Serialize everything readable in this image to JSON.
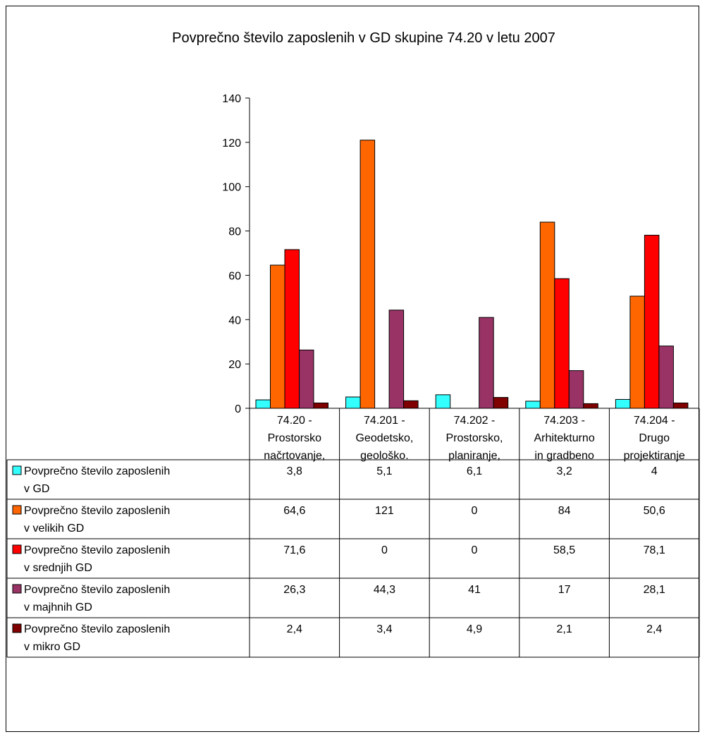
{
  "chart_data": {
    "type": "bar",
    "title": "Povprečno število zaposlenih v GD skupine 74.20 v letu 2007",
    "categories": [
      [
        "74.20 -",
        "Prostorsko",
        "načrtovanje,"
      ],
      [
        "74.201 -",
        "Geodetsko,",
        "geološko."
      ],
      [
        "74.202 -",
        "Prostorsko,",
        "planiranje,"
      ],
      [
        "74.203 -",
        "Arhitekturno",
        "in gradbeno"
      ],
      [
        "74.204 -",
        "Drugo",
        "projektiranje"
      ]
    ],
    "ylim": [
      0,
      140
    ],
    "yticks": [
      0,
      20,
      40,
      60,
      80,
      100,
      120,
      140
    ],
    "grid": false,
    "legend": "data-table",
    "series": [
      {
        "name": [
          "Povprečno število zaposlenih",
          "v GD"
        ],
        "color": "#33FFFF",
        "values": [
          3.8,
          5.1,
          6.1,
          3.2,
          4
        ],
        "labels": [
          "3,8",
          "5,1",
          "6,1",
          "3,2",
          "4"
        ]
      },
      {
        "name": [
          "Povprečno število zaposlenih",
          "v velikih GD"
        ],
        "color": "#FF6600",
        "values": [
          64.6,
          121,
          0,
          84,
          50.6
        ],
        "labels": [
          "64,6",
          "121",
          "0",
          "84",
          "50,6"
        ]
      },
      {
        "name": [
          "Povprečno število zaposlenih",
          "v srednjih GD"
        ],
        "color": "#FF0000",
        "values": [
          71.6,
          0,
          0,
          58.5,
          78.1
        ],
        "labels": [
          "71,6",
          "0",
          "0",
          "58,5",
          "78,1"
        ]
      },
      {
        "name": [
          "Povprečno število zaposlenih",
          "v majhnih GD"
        ],
        "color": "#993366",
        "values": [
          26.3,
          44.3,
          41,
          17,
          28.1
        ],
        "labels": [
          "26,3",
          "44,3",
          "41",
          "17",
          "28,1"
        ]
      },
      {
        "name": [
          "Povprečno število zaposlenih",
          "v mikro GD"
        ],
        "color": "#800000",
        "values": [
          2.4,
          3.4,
          4.9,
          2.1,
          2.4
        ],
        "labels": [
          "2,4",
          "3,4",
          "4,9",
          "2,1",
          "2,4"
        ]
      }
    ]
  }
}
